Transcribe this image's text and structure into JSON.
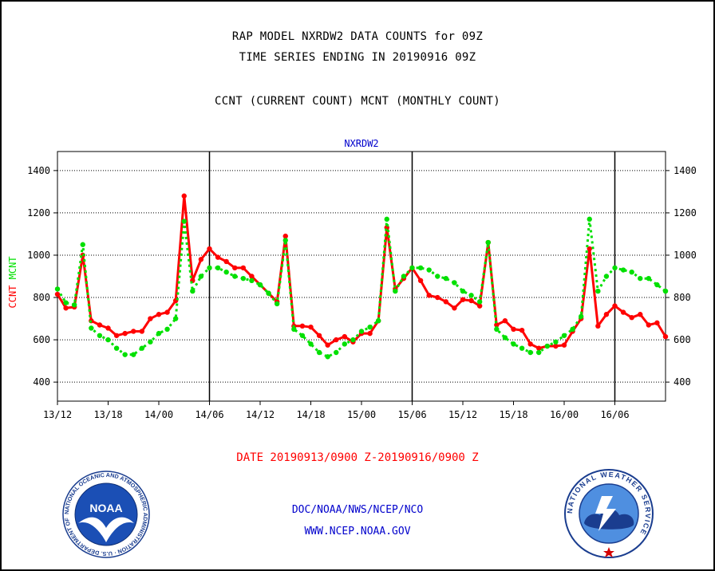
{
  "header": {
    "line1": "RAP MODEL NXRDW2 DATA COUNTS for 09Z",
    "line2": "TIME SERIES ENDING IN 20190916 09Z",
    "line3": "CCNT (CURRENT COUNT) MCNT (MONTHLY COUNT)"
  },
  "footer": {
    "date_range": "DATE 20190913/0900 Z-20190916/0900 Z",
    "org_path": "DOC/NOAA/NWS/NCEP/NCO",
    "url": "WWW.NCEP.NOAA.GOV"
  },
  "logos": {
    "noaa_center": "NOAA",
    "noaa_ring": "NATIONAL OCEANIC AND ATMOSPHERIC ADMINISTRATION · U.S. DEPARTMENT OF COMMERCE ·",
    "nws_ring": "NATIONAL WEATHER SERVICE"
  },
  "colors": {
    "ccnt": "#ff0000",
    "mcnt": "#00e000",
    "panel_title": "#0000cc",
    "footer_date": "#ff0000",
    "footer_links": "#0000cc"
  },
  "chart_data": {
    "type": "line",
    "title": "NXRDW2",
    "ylabel_parts": [
      "CCNT",
      "MCNT"
    ],
    "ylim": [
      310,
      1490
    ],
    "yticks": [
      400,
      600,
      800,
      1000,
      1200,
      1400
    ],
    "xlim_hours": [
      0,
      72
    ],
    "x_tick_labels": [
      "13/12",
      "13/18",
      "14/00",
      "14/06",
      "14/12",
      "14/18",
      "15/00",
      "15/06",
      "15/12",
      "15/18",
      "16/00",
      "16/06"
    ],
    "grid": "horizontal dotted",
    "day_separators": [
      "14/06",
      "15/06",
      "16/06"
    ],
    "series": [
      {
        "name": "CCNT",
        "values": [
          815,
          750,
          755,
          1000,
          690,
          670,
          655,
          620,
          630,
          640,
          640,
          700,
          720,
          730,
          785,
          1280,
          880,
          980,
          1030,
          990,
          970,
          940,
          940,
          900,
          860,
          820,
          780,
          1090,
          665,
          665,
          660,
          620,
          575,
          600,
          615,
          590,
          630,
          630,
          690,
          1130,
          840,
          890,
          940,
          880,
          810,
          800,
          780,
          750,
          790,
          785,
          760,
          1060,
          670,
          690,
          650,
          645,
          580,
          560,
          570,
          570,
          575,
          640,
          700,
          1030,
          665,
          720,
          760,
          730,
          705,
          720,
          670,
          680,
          615
        ]
      },
      {
        "name": "MCNT",
        "values": [
          840,
          775,
          765,
          1050,
          655,
          620,
          600,
          560,
          530,
          530,
          560,
          590,
          630,
          650,
          700,
          1160,
          830,
          900,
          940,
          940,
          920,
          900,
          890,
          880,
          860,
          820,
          770,
          1070,
          650,
          620,
          580,
          540,
          520,
          540,
          580,
          600,
          640,
          660,
          690,
          1170,
          830,
          900,
          940,
          940,
          930,
          900,
          890,
          870,
          830,
          810,
          780,
          1060,
          650,
          610,
          580,
          560,
          540,
          540,
          570,
          590,
          620,
          650,
          710,
          1170,
          830,
          900,
          940,
          930,
          920,
          890,
          890,
          860,
          830
        ]
      }
    ]
  }
}
